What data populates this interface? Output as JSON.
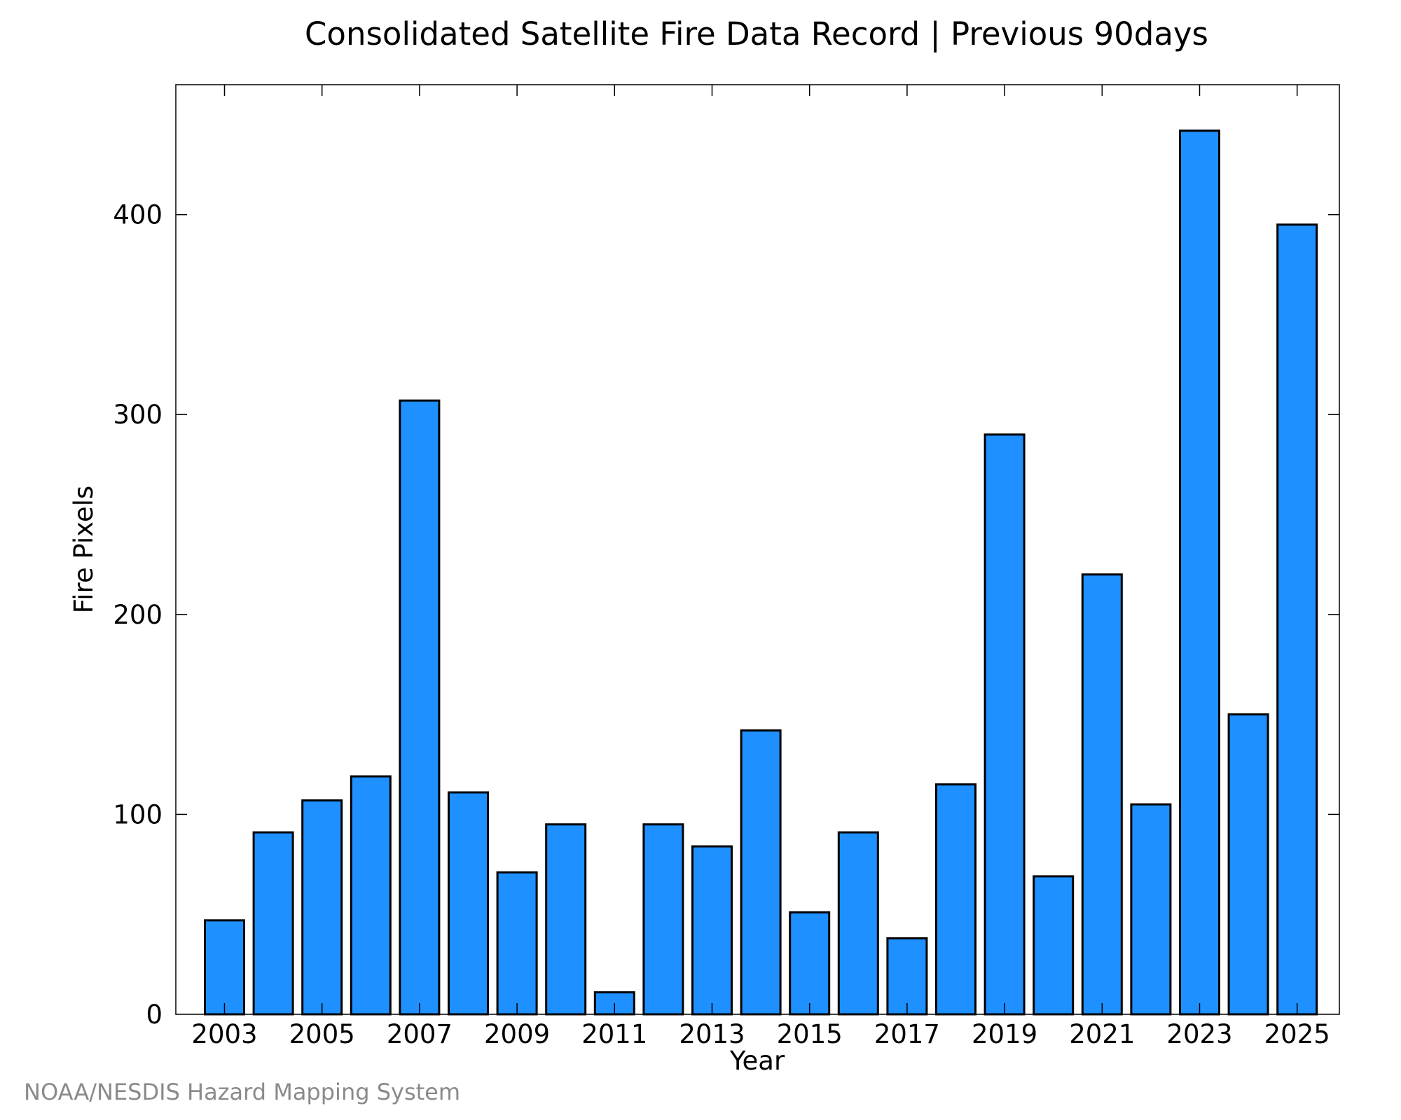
{
  "chart_data": {
    "type": "bar",
    "title": "Consolidated Satellite Fire Data Record | Previous 90days",
    "xlabel": "Year",
    "ylabel": "Fire Pixels",
    "categories": [
      "2003",
      "2004",
      "2005",
      "2006",
      "2007",
      "2008",
      "2009",
      "2010",
      "2011",
      "2012",
      "2013",
      "2014",
      "2015",
      "2016",
      "2017",
      "2018",
      "2019",
      "2020",
      "2021",
      "2022",
      "2023",
      "2024",
      "2025"
    ],
    "values": [
      47,
      91,
      107,
      119,
      307,
      111,
      71,
      95,
      11,
      95,
      84,
      142,
      51,
      91,
      38,
      115,
      290,
      69,
      220,
      105,
      442,
      150,
      395
    ],
    "x_tick_labels": [
      "2003",
      "2005",
      "2007",
      "2009",
      "2011",
      "2013",
      "2015",
      "2017",
      "2019",
      "2021",
      "2023",
      "2025"
    ],
    "y_ticks": [
      0,
      100,
      200,
      300,
      400
    ],
    "ylim": [
      0,
      465
    ],
    "grid": false,
    "bar_color": "#1e90ff",
    "bar_edge_color": "#000000"
  },
  "footer": {
    "credit": "NOAA/NESDIS Hazard Mapping System"
  }
}
